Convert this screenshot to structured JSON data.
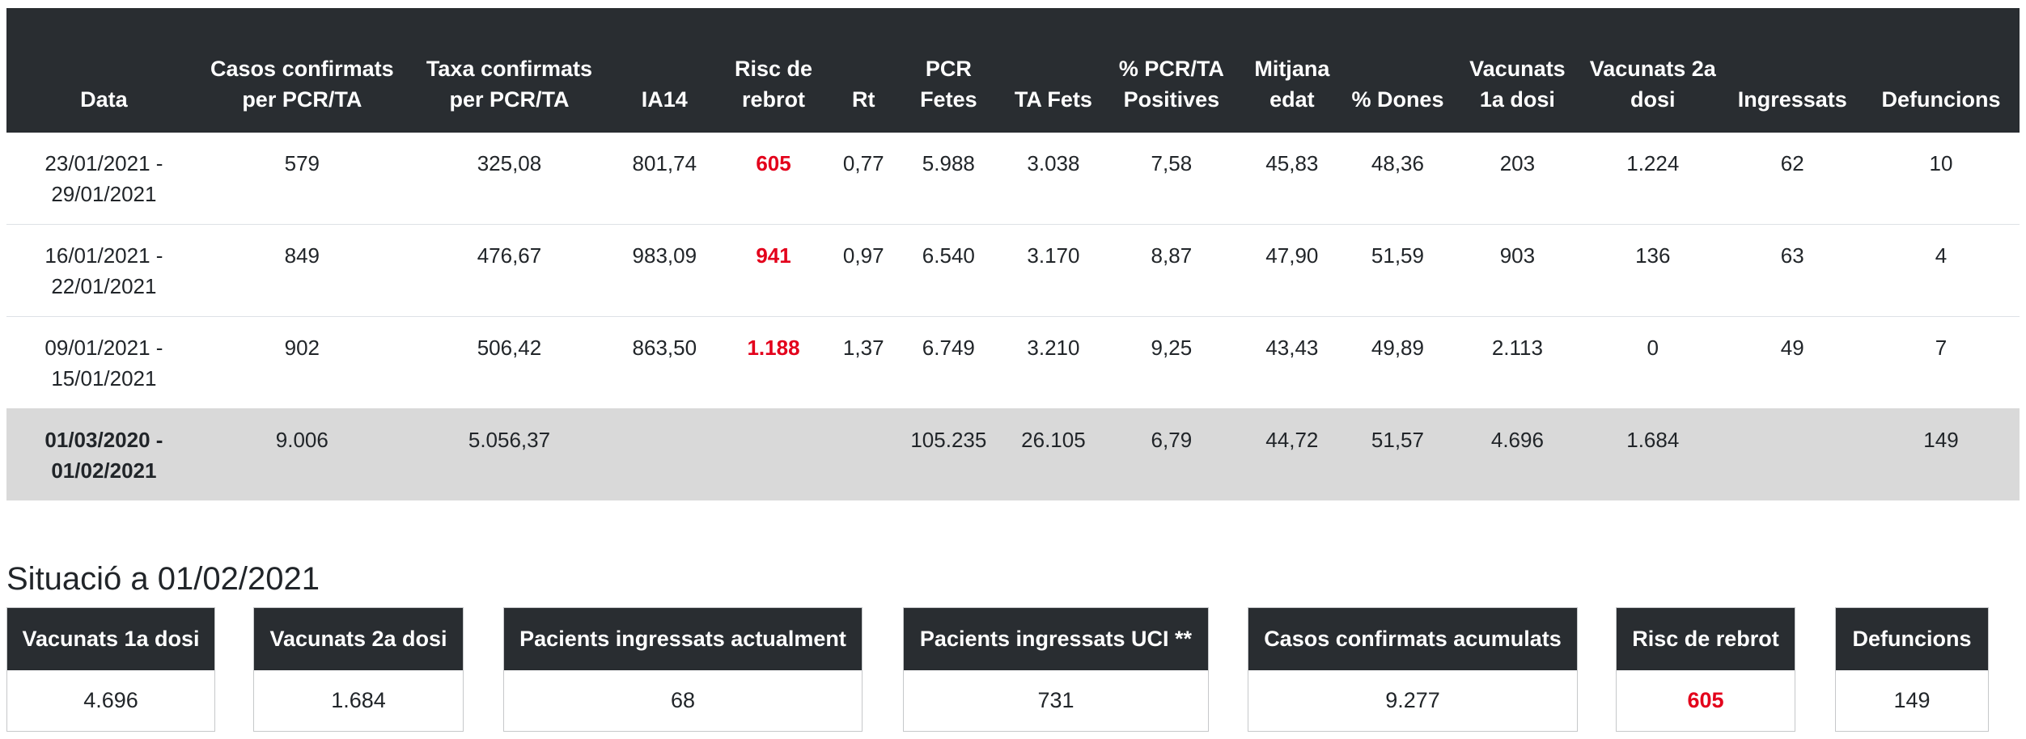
{
  "table": {
    "headers": [
      "Data",
      "Casos confirmats per PCR/TA",
      "Taxa confirmats per PCR/TA",
      "IA14",
      "Risc de rebrot",
      "Rt",
      "PCR Fetes",
      "TA Fets",
      "% PCR/TA Positives",
      "Mitjana edat",
      "% Dones",
      "Vacunats 1a dosi",
      "Vacunats 2a dosi",
      "Ingressats",
      "Defuncions"
    ],
    "rows": [
      {
        "period": "23/01/2021 - 29/01/2021",
        "cases": "579",
        "rate": "325,08",
        "ia14": "801,74",
        "risk": "605",
        "rt": "0,77",
        "pcr": "5.988",
        "ta": "3.038",
        "positives": "7,58",
        "age": "45,83",
        "women": "48,36",
        "vac1": "203",
        "vac2": "1.224",
        "admitted": "62",
        "deaths": "10"
      },
      {
        "period": "16/01/2021 - 22/01/2021",
        "cases": "849",
        "rate": "476,67",
        "ia14": "983,09",
        "risk": "941",
        "rt": "0,97",
        "pcr": "6.540",
        "ta": "3.170",
        "positives": "8,87",
        "age": "47,90",
        "women": "51,59",
        "vac1": "903",
        "vac2": "136",
        "admitted": "63",
        "deaths": "4"
      },
      {
        "period": "09/01/2021 - 15/01/2021",
        "cases": "902",
        "rate": "506,42",
        "ia14": "863,50",
        "risk": "1.188",
        "rt": "1,37",
        "pcr": "6.749",
        "ta": "3.210",
        "positives": "9,25",
        "age": "43,43",
        "women": "49,89",
        "vac1": "2.113",
        "vac2": "0",
        "admitted": "49",
        "deaths": "7"
      }
    ],
    "total": {
      "period": "01/03/2020 - 01/02/2021",
      "cases": "9.006",
      "rate": "5.056,37",
      "ia14": "",
      "risk": "",
      "rt": "",
      "pcr": "105.235",
      "ta": "26.105",
      "positives": "6,79",
      "age": "44,72",
      "women": "51,57",
      "vac1": "4.696",
      "vac2": "1.684",
      "admitted": "",
      "deaths": "149"
    }
  },
  "situation": {
    "title": "Situació a 01/02/2021",
    "cards": [
      {
        "label": "Vacunats 1a dosi",
        "value": "4.696"
      },
      {
        "label": "Vacunats 2a dosi",
        "value": "1.684"
      },
      {
        "label": "Pacients ingressats actualment",
        "value": "68"
      },
      {
        "label": "Pacients ingressats UCI **",
        "value": "731"
      },
      {
        "label": "Casos confirmats acumulats",
        "value": "9.277"
      },
      {
        "label": "Risc de rebrot",
        "value": "605"
      },
      {
        "label": "Defuncions",
        "value": "149"
      }
    ]
  },
  "colors": {
    "header_bg": "#292d31",
    "risk_red": "#e3001b",
    "total_row_bg": "#d9d9d9"
  }
}
